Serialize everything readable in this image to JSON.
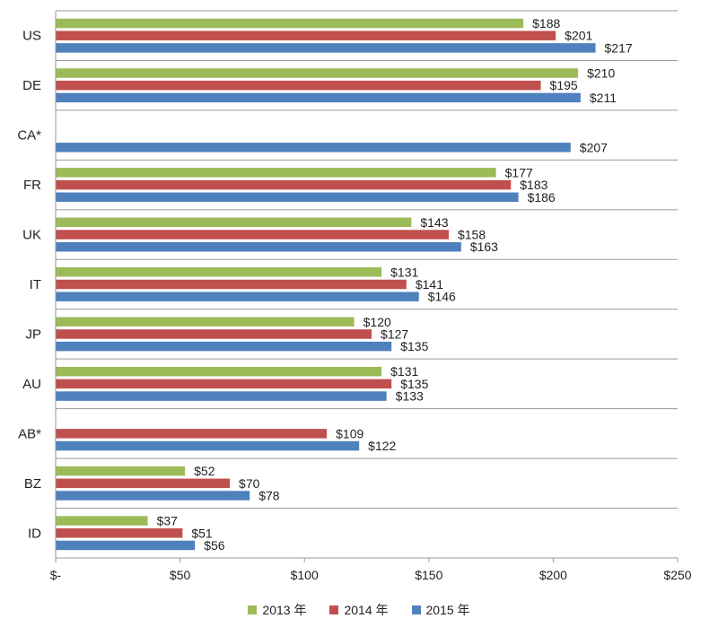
{
  "chart_data": {
    "type": "bar",
    "orientation": "horizontal",
    "categories": [
      "US",
      "DE",
      "CA*",
      "FR",
      "UK",
      "IT",
      "JP",
      "AU",
      "AB*",
      "BZ",
      "ID"
    ],
    "series": [
      {
        "name": "2013 年",
        "color": "#9bbb59",
        "values": [
          188,
          210,
          null,
          177,
          143,
          131,
          120,
          131,
          null,
          52,
          37
        ],
        "labels": [
          "$188",
          "$210",
          null,
          "$177",
          "$143",
          "$131",
          "$120",
          "$131",
          null,
          "$52",
          "$37"
        ]
      },
      {
        "name": "2014 年",
        "color": "#c0504d",
        "values": [
          201,
          195,
          null,
          183,
          158,
          141,
          127,
          135,
          109,
          70,
          51
        ],
        "labels": [
          "$201",
          "$195",
          null,
          "$183",
          "$158",
          "$141",
          "$127",
          "$135",
          "$109",
          "$70",
          "$51"
        ]
      },
      {
        "name": "2015 年",
        "color": "#4f81bd",
        "values": [
          217,
          211,
          207,
          186,
          163,
          146,
          135,
          133,
          122,
          78,
          56
        ],
        "labels": [
          "$217",
          "$211",
          "$207",
          "$186",
          "$163",
          "$146",
          "$135",
          "$133",
          "$122",
          "$78",
          "$56"
        ]
      }
    ],
    "xlim": [
      0,
      250
    ],
    "xticks": [
      0,
      50,
      100,
      150,
      200,
      250
    ],
    "xtick_labels": [
      "$-",
      "$50",
      "$100",
      "$150",
      "$200",
      "$250"
    ],
    "title": "",
    "xlabel": "",
    "ylabel": "",
    "grid": true,
    "legend_position": "bottom"
  }
}
